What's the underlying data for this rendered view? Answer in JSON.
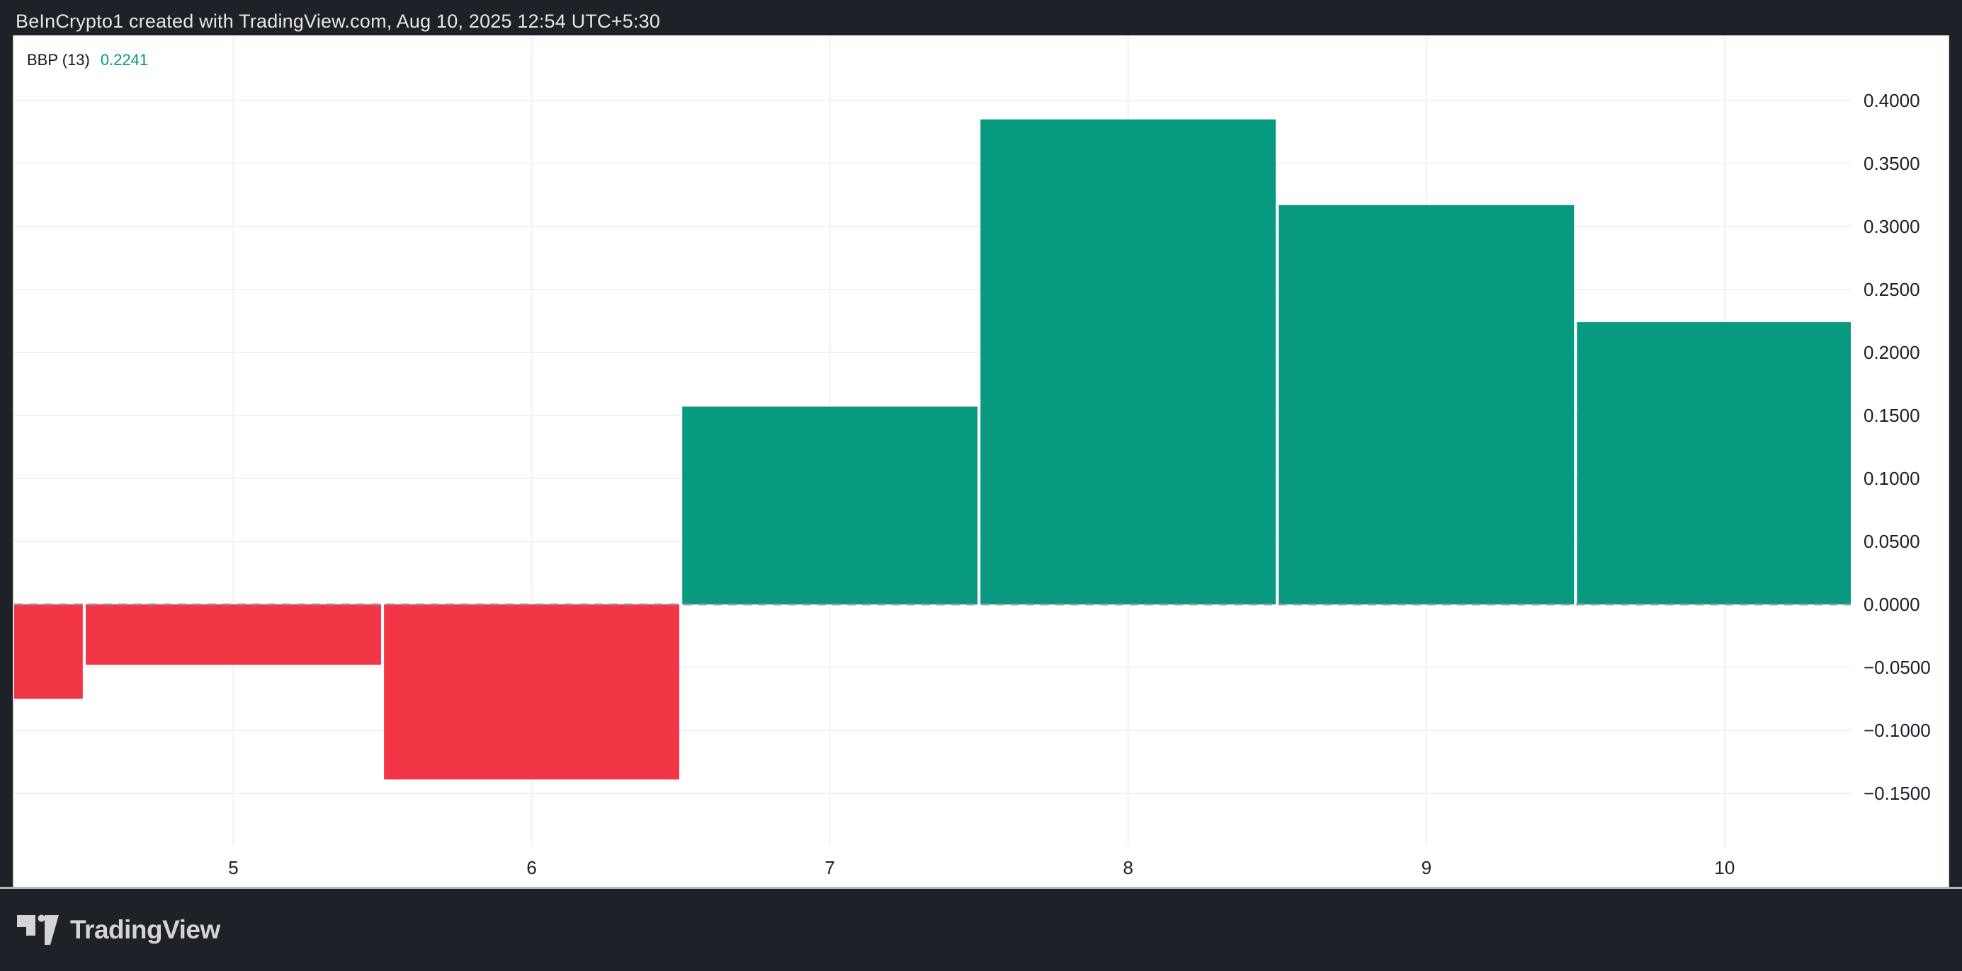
{
  "top_bar": {
    "attribution": "BeInCrypto1 created with TradingView.com, Aug 10, 2025 12:54 UTC+5:30"
  },
  "indicator": {
    "name": "BBP (13)",
    "value": "0.2241"
  },
  "footer": {
    "brand": "TradingView"
  },
  "colors": {
    "positive": "#089981",
    "negative": "#F23645",
    "indicator_value": "#089981",
    "indicator_name": "#131722",
    "chrome_dark": "#1E2127",
    "grid": "#F0F1F5",
    "zero_line": "#8F929C",
    "axis_text": "#1B1F2B",
    "separator": "#B2B5BE",
    "attribution_text": "#E4E6EA",
    "logo": "#D2D4DA"
  },
  "chart_data": {
    "type": "bar",
    "title": "BBP (13)",
    "xlabel": "",
    "ylabel": "",
    "x": [
      4,
      5,
      6,
      7,
      8,
      9,
      10
    ],
    "values": [
      -0.075,
      -0.048,
      -0.139,
      0.157,
      0.385,
      0.317,
      0.2241
    ],
    "bar_colors": [
      "negative",
      "negative",
      "negative",
      "positive",
      "positive",
      "positive",
      "positive"
    ],
    "bar_width": 0.99,
    "zero_line": 0,
    "grid": true,
    "legend_position": "top-left",
    "xlim": [
      4.265,
      10.423
    ],
    "ylim": [
      -0.1916,
      0.4517
    ],
    "x_ticks": [
      {
        "value": 5,
        "label": "5"
      },
      {
        "value": 6,
        "label": "6"
      },
      {
        "value": 7,
        "label": "7"
      },
      {
        "value": 8,
        "label": "8"
      },
      {
        "value": 9,
        "label": "9"
      },
      {
        "value": 10,
        "label": "10"
      }
    ],
    "y_ticks": [
      {
        "value": 0.4,
        "label": "0.4000"
      },
      {
        "value": 0.35,
        "label": "0.3500"
      },
      {
        "value": 0.3,
        "label": "0.3000"
      },
      {
        "value": 0.25,
        "label": "0.2500"
      },
      {
        "value": 0.2,
        "label": "0.2000"
      },
      {
        "value": 0.15,
        "label": "0.1500"
      },
      {
        "value": 0.1,
        "label": "0.1000"
      },
      {
        "value": 0.05,
        "label": "0.0500"
      },
      {
        "value": 0.0,
        "label": "0.0000"
      },
      {
        "value": -0.05,
        "label": "−0.0500"
      },
      {
        "value": -0.1,
        "label": "−0.1000"
      },
      {
        "value": -0.15,
        "label": "−0.1500"
      }
    ]
  }
}
